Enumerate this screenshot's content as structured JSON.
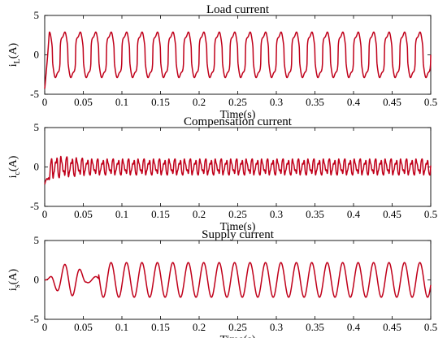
{
  "chart_data": [
    {
      "type": "line",
      "title": "Load current",
      "xlabel": "Time(s)",
      "ylabel": {
        "main": "i",
        "sub": "L",
        "unit": "(A)"
      },
      "xlim": [
        0,
        0.5
      ],
      "ylim": [
        -5,
        5
      ],
      "xticks": [
        0,
        0.05,
        0.1,
        0.15,
        0.2,
        0.25,
        0.3,
        0.35,
        0.4,
        0.45,
        0.5
      ],
      "xtick_labels": [
        "0",
        "0.05",
        "0.1",
        "0.15",
        "0.2",
        "0.25",
        "0.3",
        "0.35",
        "0.4",
        "0.45",
        "0.5"
      ],
      "yticks": [
        -5,
        0,
        5
      ],
      "ytick_labels": [
        "-5",
        "0",
        "5"
      ],
      "color": "#c0001a",
      "series": [
        {
          "waveform": "nonlinear load (square-like pulses)",
          "amplitude": 3.0,
          "frequency_hz": 50,
          "transient": {
            "t_end": 0.006,
            "min": -4.3
          }
        }
      ]
    },
    {
      "type": "line",
      "title": "Compensation current",
      "xlabel": "Time(s)",
      "ylabel": {
        "main": "i",
        "sub": "c",
        "unit": "(A)"
      },
      "xlim": [
        0,
        0.5
      ],
      "ylim": [
        -5,
        5
      ],
      "xticks": [
        0,
        0.05,
        0.1,
        0.15,
        0.2,
        0.25,
        0.3,
        0.35,
        0.4,
        0.45,
        0.5
      ],
      "xtick_labels": [
        "0",
        "0.05",
        "0.1",
        "0.15",
        "0.2",
        "0.25",
        "0.3",
        "0.35",
        "0.4",
        "0.45",
        "0.5"
      ],
      "yticks": [
        -5,
        0,
        5
      ],
      "ytick_labels": [
        "-5",
        "0",
        "5"
      ],
      "color": "#c0001a",
      "series": [
        {
          "waveform": "harmonic ripple",
          "amplitude": 1.1,
          "frequency_hz": 150,
          "transient": {
            "t_end": 0.01,
            "min": -2.2
          }
        }
      ]
    },
    {
      "type": "line",
      "title": "Supply current",
      "xlabel": "Time(s)",
      "ylabel": {
        "main": "i",
        "sub": "s",
        "unit": "(A)"
      },
      "xlim": [
        0,
        0.5
      ],
      "ylim": [
        -5,
        5
      ],
      "xticks": [
        0,
        0.05,
        0.1,
        0.15,
        0.2,
        0.25,
        0.3,
        0.35,
        0.4,
        0.45,
        0.5
      ],
      "xtick_labels": [
        "0",
        "0.05",
        "0.1",
        "0.15",
        "0.2",
        "0.25",
        "0.3",
        "0.35",
        "0.4",
        "0.45",
        "0.5"
      ],
      "yticks": [
        -5,
        0,
        5
      ],
      "ytick_labels": [
        "-5",
        "0",
        "5"
      ],
      "color": "#c0001a",
      "series": [
        {
          "waveform": "sinusoidal",
          "amplitude": 2.2,
          "frequency_hz": 50,
          "transient": {
            "t_end": 0.07,
            "peak": 2.9
          }
        }
      ]
    }
  ]
}
